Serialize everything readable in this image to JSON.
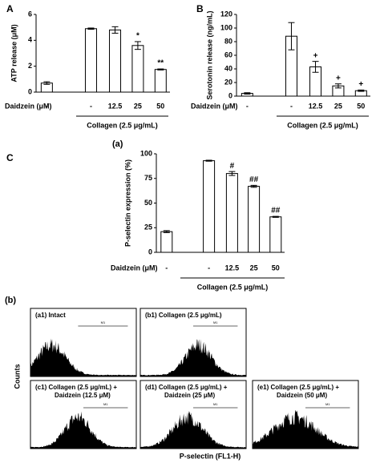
{
  "chart_data": [
    {
      "type": "bar",
      "panel_label": "A",
      "ylabel": "ATP release (μM)",
      "x_row_label": "Daidzein (μM)",
      "group_label": "Collagen (2.5 μg/mL)",
      "categories": [
        "-",
        "-",
        "12.5",
        "25",
        "50"
      ],
      "values": [
        0.7,
        4.9,
        4.8,
        3.6,
        1.75
      ],
      "errors": [
        0.1,
        0.05,
        0.25,
        0.3,
        0.04
      ],
      "annotations": [
        null,
        null,
        null,
        "*",
        "**"
      ],
      "ylim": [
        0,
        6
      ],
      "yticks": [
        0,
        2,
        4,
        6
      ],
      "color": "#ffffff"
    },
    {
      "type": "bar",
      "panel_label": "B",
      "ylabel": "Serotonin release (ng/mL)",
      "x_row_label": "Daidzein (μM)",
      "group_label": "Collagen (2.5 μg/mL)",
      "categories": [
        "-",
        "-",
        "12.5",
        "25",
        "50"
      ],
      "values": [
        4,
        88,
        43,
        15,
        8
      ],
      "errors": [
        1,
        20,
        8,
        3,
        1
      ],
      "annotations": [
        null,
        null,
        "+",
        "+",
        "+"
      ],
      "ylim": [
        0,
        120
      ],
      "yticks": [
        0,
        20,
        40,
        60,
        80,
        100,
        120
      ],
      "color": "#ffffff"
    },
    {
      "type": "bar",
      "panel_label": "C",
      "subtitle": "(a)",
      "ylabel": "P-selectin expression (%)",
      "x_row_label": "Daidzein (μM)",
      "group_label": "Collagen (2.5 μg/mL)",
      "categories": [
        "-",
        "-",
        "12.5",
        "25",
        "50"
      ],
      "values": [
        21,
        93,
        80,
        67,
        36
      ],
      "errors": [
        1,
        0.5,
        2,
        1,
        0.5
      ],
      "annotations": [
        null,
        null,
        "#",
        "##",
        "##"
      ],
      "ylim": [
        0,
        100
      ],
      "yticks": [
        0,
        25,
        50,
        75,
        100
      ],
      "color": "#ffffff"
    }
  ],
  "flow": {
    "label": "(b)",
    "ylabel": "Counts",
    "xlabel": "P-selectin (FL1-H)",
    "gate_label": "M1",
    "panels": [
      {
        "title": [
          "(a1) Intact"
        ]
      },
      {
        "title": [
          "(b1) Collagen (2.5 μg/mL)"
        ]
      },
      {
        "title": [
          "(c1) Collagen (2.5 μg/mL) +",
          "Daidzein (12.5 μM)"
        ]
      },
      {
        "title": [
          "(d1) Collagen (2.5 μg/mL) +",
          "Daidzein (25 μM)"
        ]
      },
      {
        "title": [
          "(e1) Collagen (2.5 μg/mL) +",
          "Daidzein (50 μM)"
        ]
      }
    ]
  }
}
